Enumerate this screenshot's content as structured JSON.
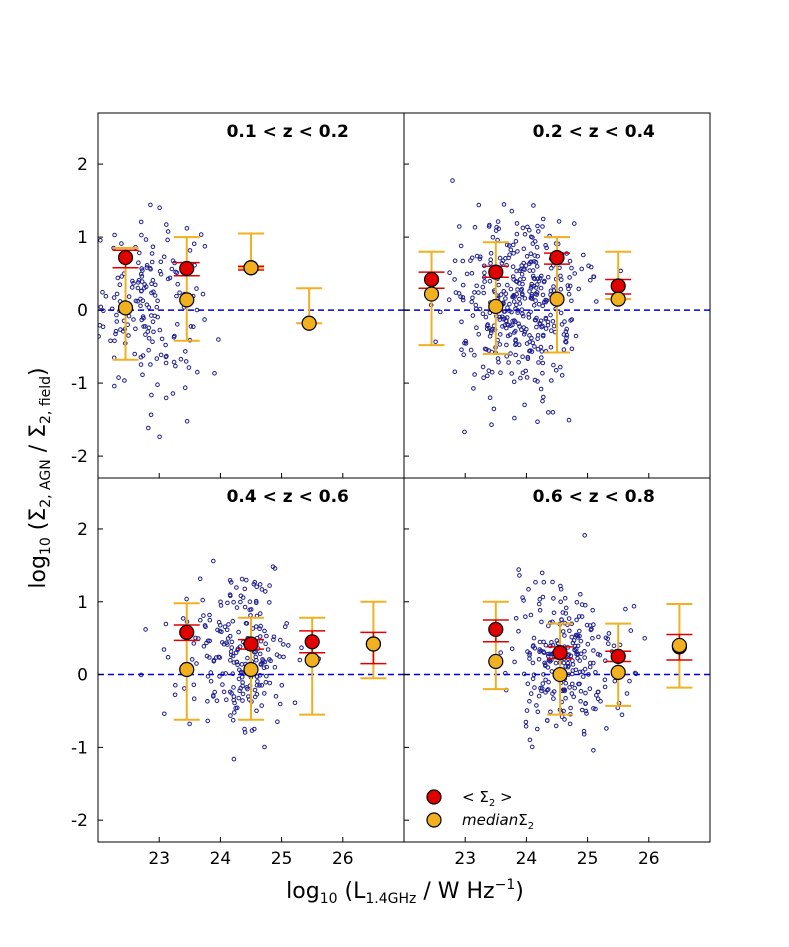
{
  "figure": {
    "ylabel_main": "log",
    "ylabel_sub": "10",
    "ylabel_rest": " (Σ",
    "ylabel_sub2": "2, AGN",
    "ylabel_mid": " / Σ",
    "ylabel_sub3": "2, field",
    "ylabel_end": ")",
    "xlabel_main": "log",
    "xlabel_sub": "10",
    "xlabel_rest": " (L",
    "xlabel_sub2": "1.4GHz",
    "xlabel_mid": " / W Hz",
    "xlabel_sup": "−1",
    "xlabel_end": ")",
    "legend": {
      "mean_label": "< Σ",
      "mean_sub": "2",
      "mean_end": " >",
      "median_label": "median",
      "median_sym": "Σ",
      "median_sub": "2",
      "placement": "lower-left of bottom-right panel"
    },
    "colors": {
      "scatter": "#1f1f8f",
      "mean": "#e00000",
      "mean_err": "#e00000",
      "median": "#f0b020",
      "median_err": "#f0b020",
      "zero_line": "#0000dd"
    }
  },
  "chart_data": [
    {
      "type": "scatter",
      "title": "0.1 < z < 0.2",
      "xlim": [
        22.0,
        27.0
      ],
      "ylim": [
        -2.3,
        2.7
      ],
      "xticks": [
        23,
        24,
        25,
        26
      ],
      "yticks": [
        -2,
        -1,
        0,
        1,
        2
      ],
      "ytick_labels": [
        "-2",
        "-1",
        "0",
        "1",
        "2"
      ],
      "show_xticklabels": false,
      "show_yticklabels": true,
      "reference_line_y": 0,
      "scatter_cloud": {
        "count": 180,
        "x_center": 22.8,
        "x_spread": 0.45,
        "y_center": 0.1,
        "y_spread": 0.6
      },
      "mean": [
        {
          "x": 22.45,
          "y": 0.72,
          "lo": 0.58,
          "hi": 0.82
        },
        {
          "x": 23.45,
          "y": 0.57,
          "lo": 0.47,
          "hi": 0.65
        },
        {
          "x": 24.5,
          "y": 0.58,
          "lo": 0.55,
          "hi": 0.6
        }
      ],
      "median": [
        {
          "x": 22.45,
          "y": 0.03,
          "lo": -0.68,
          "hi": 0.85
        },
        {
          "x": 23.45,
          "y": 0.14,
          "lo": -0.42,
          "hi": 1.0
        },
        {
          "x": 24.5,
          "y": 0.58,
          "lo": 0.58,
          "hi": 1.05
        },
        {
          "x": 25.45,
          "y": -0.18,
          "lo": -0.18,
          "hi": 0.3
        }
      ]
    },
    {
      "type": "scatter",
      "title": "0.2 < z < 0.4",
      "xlim": [
        22.0,
        27.0
      ],
      "ylim": [
        -2.3,
        2.7
      ],
      "xticks": [
        23,
        24,
        25,
        26
      ],
      "yticks": [
        -2,
        -1,
        0,
        1,
        2
      ],
      "ytick_labels": [
        "-2",
        "-1",
        "0",
        "1",
        "2"
      ],
      "show_xticklabels": false,
      "show_yticklabels": false,
      "reference_line_y": 0,
      "scatter_cloud": {
        "count": 420,
        "x_center": 23.9,
        "x_spread": 0.5,
        "y_center": 0.05,
        "y_spread": 0.6
      },
      "mean": [
        {
          "x": 22.45,
          "y": 0.42,
          "lo": 0.3,
          "hi": 0.52
        },
        {
          "x": 23.5,
          "y": 0.52,
          "lo": 0.45,
          "hi": 0.6
        },
        {
          "x": 24.5,
          "y": 0.72,
          "lo": 0.63,
          "hi": 0.78
        },
        {
          "x": 25.5,
          "y": 0.33,
          "lo": 0.22,
          "hi": 0.42
        }
      ],
      "median": [
        {
          "x": 22.45,
          "y": 0.22,
          "lo": -0.48,
          "hi": 0.8
        },
        {
          "x": 23.5,
          "y": 0.05,
          "lo": -0.6,
          "hi": 0.93
        },
        {
          "x": 24.5,
          "y": 0.15,
          "lo": -0.58,
          "hi": 1.0
        },
        {
          "x": 25.5,
          "y": 0.15,
          "lo": 0.15,
          "hi": 0.8
        }
      ]
    },
    {
      "type": "scatter",
      "title": "0.4 < z < 0.6",
      "xlim": [
        22.0,
        27.0
      ],
      "ylim": [
        -2.3,
        2.7
      ],
      "xticks": [
        23,
        24,
        25,
        26
      ],
      "yticks": [
        -2,
        -1,
        0,
        1,
        2
      ],
      "ytick_labels": [
        "-2",
        "-1",
        "0",
        "1",
        "2"
      ],
      "show_xticklabels": true,
      "xtick_labels": [
        "23",
        "24",
        "25",
        "26"
      ],
      "show_yticklabels": true,
      "reference_line_y": 0,
      "scatter_cloud": {
        "count": 240,
        "x_center": 24.3,
        "x_spread": 0.45,
        "y_center": 0.2,
        "y_spread": 0.55
      },
      "mean": [
        {
          "x": 23.45,
          "y": 0.58,
          "lo": 0.47,
          "hi": 0.68
        },
        {
          "x": 24.5,
          "y": 0.42,
          "lo": 0.35,
          "hi": 0.48
        },
        {
          "x": 25.5,
          "y": 0.45,
          "lo": 0.3,
          "hi": 0.6
        },
        {
          "x": 26.5,
          "y": 0.42,
          "lo": 0.15,
          "hi": 0.58
        }
      ],
      "median": [
        {
          "x": 23.45,
          "y": 0.07,
          "lo": -0.62,
          "hi": 0.98
        },
        {
          "x": 24.5,
          "y": 0.07,
          "lo": -0.62,
          "hi": 0.78
        },
        {
          "x": 25.5,
          "y": 0.2,
          "lo": -0.55,
          "hi": 0.78
        },
        {
          "x": 26.5,
          "y": 0.42,
          "lo": -0.05,
          "hi": 1.0
        }
      ]
    },
    {
      "type": "scatter",
      "title": "0.6 < z < 0.8",
      "xlim": [
        22.0,
        27.0
      ],
      "ylim": [
        -2.3,
        2.7
      ],
      "xticks": [
        23,
        24,
        25,
        26
      ],
      "yticks": [
        -2,
        -1,
        0,
        1,
        2
      ],
      "ytick_labels": [
        "-2",
        "-1",
        "0",
        "1",
        "2"
      ],
      "show_xticklabels": true,
      "xtick_labels": [
        "23",
        "24",
        "25",
        "26"
      ],
      "show_yticklabels": false,
      "reference_line_y": 0,
      "scatter_cloud": {
        "count": 260,
        "x_center": 24.6,
        "x_spread": 0.45,
        "y_center": 0.15,
        "y_spread": 0.5
      },
      "mean": [
        {
          "x": 23.5,
          "y": 0.62,
          "lo": 0.45,
          "hi": 0.75
        },
        {
          "x": 24.55,
          "y": 0.3,
          "lo": 0.22,
          "hi": 0.38
        },
        {
          "x": 25.5,
          "y": 0.25,
          "lo": 0.18,
          "hi": 0.32
        },
        {
          "x": 26.5,
          "y": 0.38,
          "lo": 0.2,
          "hi": 0.55
        }
      ],
      "median": [
        {
          "x": 23.5,
          "y": 0.18,
          "lo": -0.2,
          "hi": 1.0
        },
        {
          "x": 24.55,
          "y": 0.0,
          "lo": -0.55,
          "hi": 0.7
        },
        {
          "x": 25.5,
          "y": 0.03,
          "lo": -0.43,
          "hi": 0.7
        },
        {
          "x": 26.5,
          "y": 0.4,
          "lo": -0.18,
          "hi": 0.97
        }
      ]
    }
  ]
}
